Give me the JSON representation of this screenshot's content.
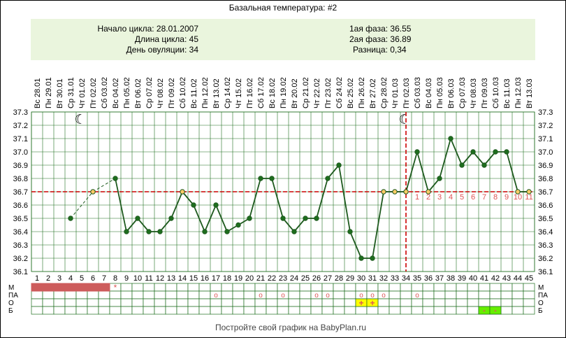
{
  "title": "Базальная температура: #2",
  "info": {
    "cycle_start": "Начало цикла: 28.01.2007",
    "cycle_length": "Длина цикла: 45",
    "ovulation_day": "День овуляции: 34",
    "phase1": "1ая фаза: 36.55",
    "phase2": "2ая фаза: 36.89",
    "difference": "Разница: 0,34"
  },
  "footer": "Постройте свой график на BabyPlan.ru",
  "colors": {
    "line": "#1e5a1e",
    "point": "#1e6e1e",
    "threshold": "#cc0000",
    "grid": "#1e6e1e",
    "info_bg": "#eaf5dd",
    "m_fill": "#cd5c5c",
    "o_fill": "#ffff00",
    "b_fill": "#66ee00",
    "marker": "#dd5555"
  },
  "chart_data": {
    "type": "line",
    "title": "Базальная температура: #2",
    "x": [
      1,
      2,
      3,
      4,
      5,
      6,
      7,
      8,
      9,
      10,
      11,
      12,
      13,
      14,
      15,
      16,
      17,
      18,
      19,
      20,
      21,
      22,
      23,
      24,
      25,
      26,
      27,
      28,
      29,
      30,
      31,
      32,
      33,
      34,
      35,
      36,
      37,
      38,
      39,
      40,
      41,
      42,
      43,
      44,
      45
    ],
    "dates": [
      "28.01",
      "29.01",
      "30.01",
      "31.01",
      "01.02",
      "02.02",
      "03.02",
      "04.02",
      "05.02",
      "06.02",
      "07.02",
      "08.02",
      "09.02",
      "10.02",
      "11.02",
      "12.02",
      "13.02",
      "14.02",
      "15.02",
      "16.02",
      "17.02",
      "18.02",
      "19.02",
      "20.02",
      "21.02",
      "22.02",
      "23.02",
      "24.02",
      "25.02",
      "26.02",
      "27.02",
      "28.02",
      "01.03",
      "02.03",
      "03.03",
      "04.03",
      "05.03",
      "06.03",
      "07.03",
      "08.03",
      "09.03",
      "10.03",
      "11.03",
      "12.03",
      "13.03"
    ],
    "weekdays": [
      "Вс",
      "Пн",
      "Вт",
      "Ср",
      "Чт",
      "Пт",
      "Сб",
      "Вс",
      "Пн",
      "Вт",
      "Ср",
      "Чт",
      "Пт",
      "Сб",
      "Вс",
      "Пн",
      "Вт",
      "Ср",
      "Чт",
      "Пт",
      "Сб",
      "Вс",
      "Пн",
      "Вт",
      "Ср",
      "Чт",
      "Пт",
      "Сб",
      "Вс",
      "Пн",
      "Вт",
      "Ср",
      "Чт",
      "Пт",
      "Сб",
      "Вс",
      "Пн",
      "Вт",
      "Ср",
      "Чт",
      "Пт",
      "Сб",
      "Вс",
      "Пн",
      "Вт"
    ],
    "ylim": [
      36.1,
      37.3
    ],
    "y_ticks": [
      "36.1",
      "36.2",
      "36.3",
      "36.4",
      "36.5",
      "36.6",
      "36.7",
      "36.8",
      "36.9",
      "37.0",
      "37.1",
      "37.2",
      "37.3"
    ],
    "points": [
      {
        "day": 4,
        "temp": 36.5,
        "dashed_in": false
      },
      {
        "day": 6,
        "temp": 36.7,
        "dashed_in": true
      },
      {
        "day": 8,
        "temp": 36.8,
        "dashed_in": true
      },
      {
        "day": 9,
        "temp": 36.4,
        "dashed_in": false
      },
      {
        "day": 10,
        "temp": 36.5,
        "dashed_in": false
      },
      {
        "day": 11,
        "temp": 36.4,
        "dashed_in": false
      },
      {
        "day": 12,
        "temp": 36.4,
        "dashed_in": false
      },
      {
        "day": 13,
        "temp": 36.5,
        "dashed_in": false
      },
      {
        "day": 14,
        "temp": 36.7,
        "dashed_in": false
      },
      {
        "day": 15,
        "temp": 36.6,
        "dashed_in": false
      },
      {
        "day": 16,
        "temp": 36.4,
        "dashed_in": false
      },
      {
        "day": 17,
        "temp": 36.6,
        "dashed_in": false
      },
      {
        "day": 18,
        "temp": 36.4,
        "dashed_in": false
      },
      {
        "day": 19,
        "temp": 36.45,
        "dashed_in": false
      },
      {
        "day": 20,
        "temp": 36.5,
        "dashed_in": false
      },
      {
        "day": 21,
        "temp": 36.8,
        "dashed_in": false
      },
      {
        "day": 22,
        "temp": 36.8,
        "dashed_in": false
      },
      {
        "day": 23,
        "temp": 36.5,
        "dashed_in": false
      },
      {
        "day": 24,
        "temp": 36.4,
        "dashed_in": false
      },
      {
        "day": 25,
        "temp": 36.5,
        "dashed_in": false
      },
      {
        "day": 26,
        "temp": 36.5,
        "dashed_in": false
      },
      {
        "day": 27,
        "temp": 36.8,
        "dashed_in": false
      },
      {
        "day": 28,
        "temp": 36.9,
        "dashed_in": false
      },
      {
        "day": 29,
        "temp": 36.4,
        "dashed_in": false
      },
      {
        "day": 30,
        "temp": 36.2,
        "dashed_in": false
      },
      {
        "day": 31,
        "temp": 36.2,
        "dashed_in": false
      },
      {
        "day": 32,
        "temp": 36.7,
        "dashed_in": false
      },
      {
        "day": 33,
        "temp": 36.7,
        "dashed_in": false
      },
      {
        "day": 34,
        "temp": 36.7,
        "dashed_in": false
      },
      {
        "day": 35,
        "temp": 37.0,
        "dashed_in": false
      },
      {
        "day": 36,
        "temp": 36.7,
        "dashed_in": false
      },
      {
        "day": 37,
        "temp": 36.8,
        "dashed_in": false
      },
      {
        "day": 38,
        "temp": 37.1,
        "dashed_in": false
      },
      {
        "day": 39,
        "temp": 36.9,
        "dashed_in": false
      },
      {
        "day": 40,
        "temp": 37.0,
        "dashed_in": false
      },
      {
        "day": 41,
        "temp": 36.9,
        "dashed_in": false
      },
      {
        "day": 42,
        "temp": 37.0,
        "dashed_in": false
      },
      {
        "day": 43,
        "temp": 37.0,
        "dashed_in": false
      },
      {
        "day": 44,
        "temp": 36.7,
        "dashed_in": false
      },
      {
        "day": 45,
        "temp": 36.7,
        "dashed_in": false
      }
    ],
    "open_points": [
      6,
      14,
      32,
      33,
      34,
      36,
      44,
      45
    ],
    "threshold": 36.7,
    "ovulation_day": 34,
    "moon_days": [
      5,
      34
    ],
    "phase2_labels": [
      "1",
      "2",
      "3",
      "4",
      "5",
      "6",
      "7",
      "8",
      "9",
      "10",
      "11"
    ],
    "phase2_start_day": 35,
    "row_labels": [
      "М",
      "ПА",
      "О",
      "Б"
    ],
    "rows": {
      "M_filled_days": [
        1,
        2,
        3,
        4,
        5,
        6,
        7
      ],
      "M_star": {
        "day": 8,
        "symbol": "*"
      },
      "PA_circle_days": [
        17,
        21,
        23,
        26,
        27,
        30,
        31,
        32,
        35
      ],
      "PA_symbol": "o",
      "O_plus_days": [
        30,
        31
      ],
      "O_symbol": "+",
      "B_minus_days": [
        41,
        42
      ],
      "B_symbol": "-"
    }
  }
}
